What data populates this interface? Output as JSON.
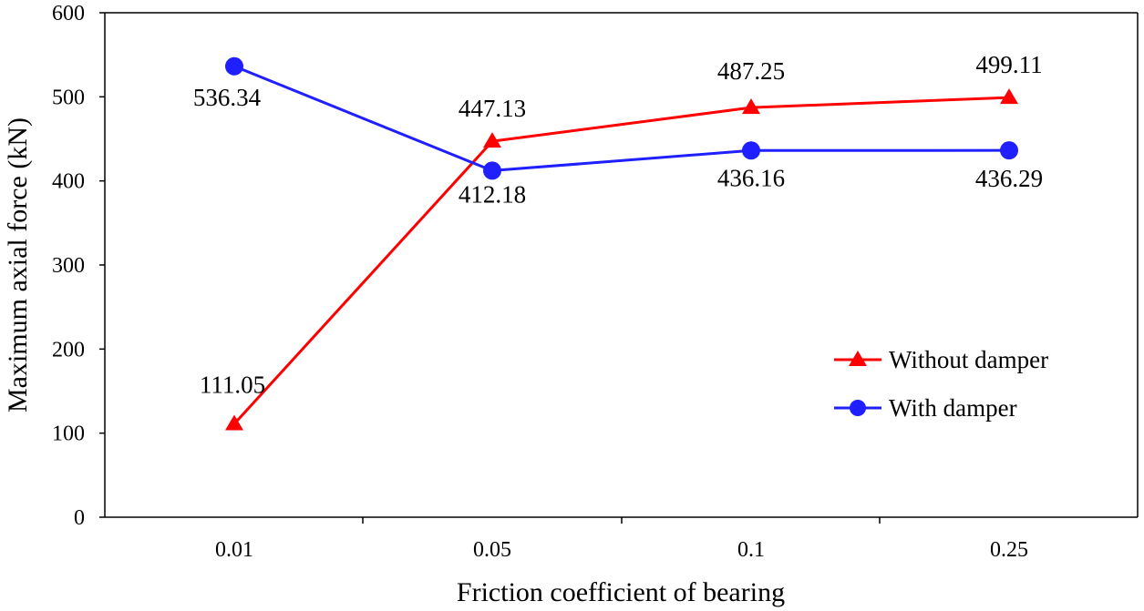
{
  "chart_data": {
    "type": "line",
    "title": "",
    "xlabel": "Friction coefficient of bearing",
    "ylabel": "Maximum axial force (kN)",
    "categories": [
      "0.01",
      "0.05",
      "0.1",
      "0.25"
    ],
    "ylim": [
      0,
      600
    ],
    "yticks": [
      0,
      100,
      200,
      300,
      400,
      500,
      600
    ],
    "grid": false,
    "legend_position": "bottom-right",
    "series": [
      {
        "name": "Without damper",
        "color": "#ff0000",
        "marker": "triangle",
        "values": [
          111.05,
          447.13,
          487.25,
          499.11
        ],
        "labels": [
          "111.05",
          "447.13",
          "487.25",
          "499.11"
        ]
      },
      {
        "name": "With damper",
        "color": "#1f1fff",
        "marker": "circle",
        "values": [
          536.34,
          412.18,
          436.16,
          436.29
        ],
        "labels": [
          "536.34",
          "412.18",
          "436.16",
          "436.29"
        ]
      }
    ]
  }
}
